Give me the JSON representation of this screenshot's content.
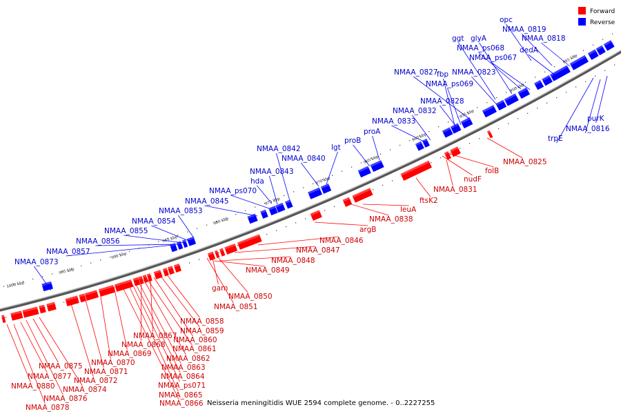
{
  "colors": {
    "forward": "#ff0000",
    "reverse": "#0000ff",
    "forward_label": "#cc0000",
    "reverse_label": "#0000cc",
    "backbone": "#777777"
  },
  "legend": [
    {
      "key": "forward",
      "label": "Forward"
    },
    {
      "key": "reverse",
      "label": "Reverse"
    }
  ],
  "caption": "Neisseria meningitidis WUE 2594 complete genome. - 0..2227255",
  "ticks": [
    "945 kbp",
    "950 kbp",
    "955 kbp",
    "960 kbp",
    "965 kbp",
    "970 kbp",
    "975 kbp",
    "980 kbp",
    "985 kbp",
    "990 kbp",
    "995 kbp",
    "1000 kbp"
  ],
  "reverse_labels": [
    "opc",
    "NMAA_0819",
    "NMAA_0818",
    "ggt",
    "glyA",
    "NMAA_ps068",
    "NMAA_ps067",
    "dedA",
    "fbp",
    "NMAA_0827",
    "NMAA_0823",
    "NMAA_ps069",
    "NMAA_0828",
    "NMAA_0832",
    "NMAA_0833",
    "proA",
    "proB",
    "lgt",
    "NMAA_0842",
    "NMAA_0840",
    "NMAA_0843",
    "hda",
    "NMAA_ps070",
    "NMAA_0845",
    "NMAA_0853",
    "NMAA_0854",
    "NMAA_0855",
    "NMAA_0856",
    "NMAA_0857",
    "NMAA_0873",
    "purK",
    "NMAA_0816",
    "trpE"
  ],
  "forward_labels": [
    "NMAA_0825",
    "folB",
    "nudF",
    "NMAA_0831",
    "ftsK2",
    "leuA",
    "NMAA_0838",
    "argB",
    "NMAA_0846",
    "NMAA_0847",
    "NMAA_0848",
    "NMAA_0849",
    "gam",
    "NMAA_0850",
    "NMAA_0851",
    "NMAA_0858",
    "NMAA_0859",
    "NMAA_0860",
    "NMAA_0861",
    "NMAA_0862",
    "NMAA_0863",
    "NMAA_0864",
    "NMAA_ps071",
    "NMAA_0865",
    "NMAA_0866",
    "NMAA_0867",
    "NMAA_0868",
    "NMAA_0869",
    "NMAA_0870",
    "NMAA_0871",
    "NMAA_0872",
    "NMAA_0874",
    "NMAA_0875",
    "NMAA_0876",
    "NMAA_0877",
    "NMAA_0878",
    "NMAA_0880"
  ]
}
